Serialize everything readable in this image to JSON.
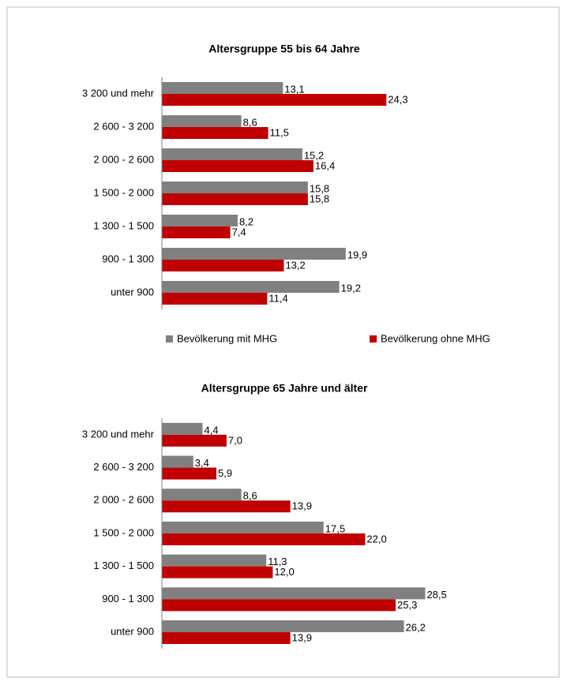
{
  "chart_data": [
    {
      "type": "bar",
      "orientation": "horizontal",
      "title": "Altersgruppe 55 bis 64 Jahre",
      "categories": [
        "3 200 und mehr",
        "2 600 - 3 200",
        "2 000 - 2 600",
        "1 500 - 2 000",
        "1 300 - 1 500",
        "900 - 1 300",
        "unter 900"
      ],
      "xlim": [
        0,
        40
      ],
      "legend": "bottom",
      "series": [
        {
          "name": "Bevölkerung mit MHG",
          "color": "#808080",
          "values": [
            13.1,
            8.6,
            15.2,
            15.8,
            8.2,
            19.9,
            19.2
          ],
          "value_labels": [
            "13,1",
            "8,6",
            "15,2",
            "15,8",
            "8,2",
            "19,9",
            "19,2"
          ]
        },
        {
          "name": "Bevölkerung ohne MHG",
          "color": "#c00000",
          "values": [
            24.3,
            11.5,
            16.4,
            15.8,
            7.4,
            13.2,
            11.4
          ],
          "value_labels": [
            "24,3",
            "11,5",
            "16,4",
            "15,8",
            "7,4",
            "13,2",
            "11,4"
          ]
        }
      ]
    },
    {
      "type": "bar",
      "orientation": "horizontal",
      "title": "Altersgruppe 65 Jahre und älter",
      "categories": [
        "3 200 und mehr",
        "2 600 - 3 200",
        "2 000 - 2 600",
        "1 500 - 2 000",
        "1 300 - 1 500",
        "900 - 1 300",
        "unter 900"
      ],
      "xlim": [
        0,
        40
      ],
      "series": [
        {
          "color": "#808080",
          "values": [
            4.4,
            3.4,
            8.6,
            17.5,
            11.3,
            28.5,
            26.2
          ],
          "value_labels": [
            "4,4",
            "3,4",
            "8,6",
            "17,5",
            "11,3",
            "28,5",
            "26,2"
          ]
        },
        {
          "color": "#c00000",
          "values": [
            7.0,
            5.9,
            13.9,
            22.0,
            12.0,
            25.3,
            13.9
          ],
          "value_labels": [
            "7,0",
            "5,9",
            "13,9",
            "22,0",
            "12,0",
            "25,3",
            "13,9"
          ]
        }
      ]
    }
  ]
}
